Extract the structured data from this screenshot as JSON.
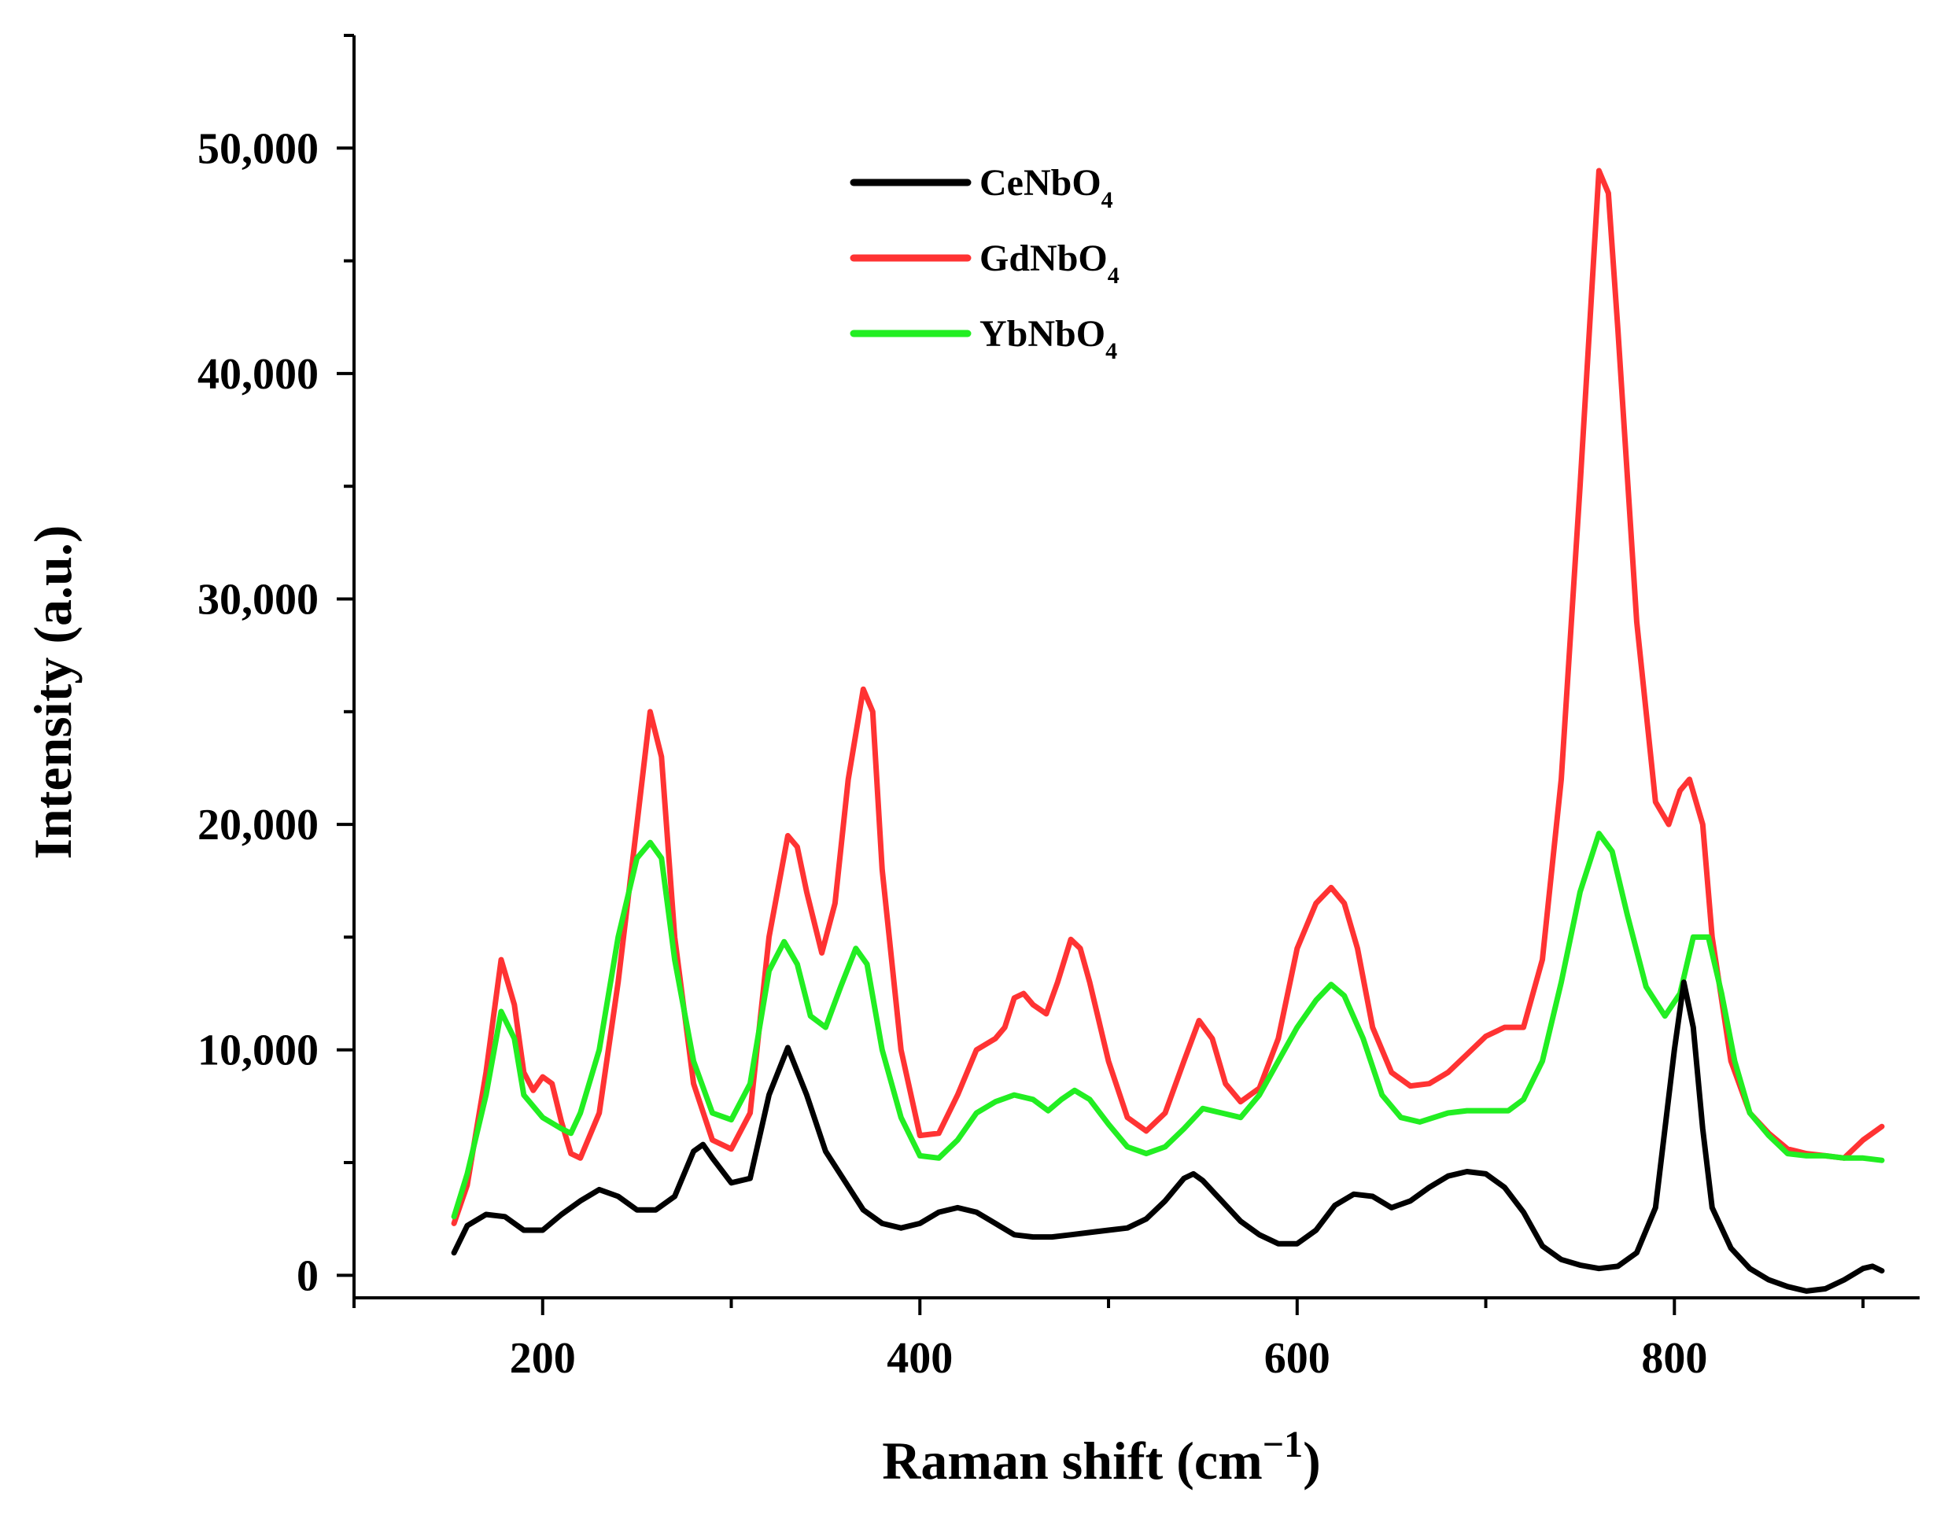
{
  "chart_data": {
    "type": "line",
    "title": "",
    "xlabel": "Raman shift  (cm",
    "xlabel_sup": "−1",
    "xlabel_close": ")",
    "ylabel": "Intensity  (a.u.)",
    "xlim": [
      100,
      930
    ],
    "ylim": [
      -1000,
      55000
    ],
    "x_ticks": [
      200,
      400,
      600,
      800
    ],
    "x_tick_labels": [
      "200",
      "400",
      "600",
      "800"
    ],
    "y_ticks": [
      0,
      10000,
      20000,
      30000,
      40000,
      50000
    ],
    "y_tick_labels": [
      "0",
      "10,000",
      "20,000",
      "30,000",
      "40,000",
      "50,000"
    ],
    "grid": false,
    "legend_position": "top-center",
    "series": [
      {
        "name": "CeNbO4",
        "label_main": "CeNbO",
        "label_sub": "4",
        "color": "#000000",
        "points": [
          [
            153,
            1000
          ],
          [
            160,
            2200
          ],
          [
            170,
            2700
          ],
          [
            180,
            2600
          ],
          [
            190,
            2000
          ],
          [
            200,
            2000
          ],
          [
            210,
            2700
          ],
          [
            220,
            3300
          ],
          [
            230,
            3800
          ],
          [
            240,
            3500
          ],
          [
            250,
            2900
          ],
          [
            260,
            2900
          ],
          [
            270,
            3500
          ],
          [
            280,
            5500
          ],
          [
            285,
            5800
          ],
          [
            290,
            5200
          ],
          [
            300,
            4100
          ],
          [
            310,
            4300
          ],
          [
            320,
            8000
          ],
          [
            330,
            10100
          ],
          [
            340,
            8000
          ],
          [
            350,
            5500
          ],
          [
            360,
            4200
          ],
          [
            370,
            2900
          ],
          [
            380,
            2300
          ],
          [
            390,
            2100
          ],
          [
            400,
            2300
          ],
          [
            410,
            2800
          ],
          [
            420,
            3000
          ],
          [
            430,
            2800
          ],
          [
            440,
            2300
          ],
          [
            450,
            1800
          ],
          [
            460,
            1700
          ],
          [
            470,
            1700
          ],
          [
            480,
            1800
          ],
          [
            490,
            1900
          ],
          [
            500,
            2000
          ],
          [
            510,
            2100
          ],
          [
            520,
            2500
          ],
          [
            530,
            3300
          ],
          [
            540,
            4300
          ],
          [
            545,
            4500
          ],
          [
            550,
            4200
          ],
          [
            560,
            3300
          ],
          [
            570,
            2400
          ],
          [
            580,
            1800
          ],
          [
            590,
            1400
          ],
          [
            600,
            1400
          ],
          [
            610,
            2000
          ],
          [
            620,
            3100
          ],
          [
            630,
            3600
          ],
          [
            640,
            3500
          ],
          [
            650,
            3000
          ],
          [
            660,
            3300
          ],
          [
            670,
            3900
          ],
          [
            680,
            4400
          ],
          [
            690,
            4600
          ],
          [
            700,
            4500
          ],
          [
            710,
            3900
          ],
          [
            720,
            2800
          ],
          [
            730,
            1300
          ],
          [
            740,
            700
          ],
          [
            750,
            450
          ],
          [
            760,
            300
          ],
          [
            770,
            400
          ],
          [
            780,
            1000
          ],
          [
            790,
            3000
          ],
          [
            800,
            10000
          ],
          [
            805,
            13000
          ],
          [
            810,
            11000
          ],
          [
            815,
            6500
          ],
          [
            820,
            3000
          ],
          [
            830,
            1200
          ],
          [
            840,
            300
          ],
          [
            850,
            -200
          ],
          [
            860,
            -500
          ],
          [
            870,
            -700
          ],
          [
            880,
            -600
          ],
          [
            890,
            -200
          ],
          [
            900,
            300
          ],
          [
            905,
            400
          ],
          [
            910,
            200
          ]
        ]
      },
      {
        "name": "GdNbO4",
        "label_main": "GdNbO",
        "label_sub": "4",
        "color": "#ff3333",
        "points": [
          [
            153,
            2300
          ],
          [
            160,
            4000
          ],
          [
            170,
            9000
          ],
          [
            178,
            14000
          ],
          [
            185,
            12000
          ],
          [
            190,
            9000
          ],
          [
            195,
            8200
          ],
          [
            200,
            8800
          ],
          [
            205,
            8500
          ],
          [
            210,
            6800
          ],
          [
            215,
            5400
          ],
          [
            220,
            5200
          ],
          [
            230,
            7200
          ],
          [
            240,
            13000
          ],
          [
            250,
            20000
          ],
          [
            257,
            25000
          ],
          [
            263,
            23000
          ],
          [
            270,
            15000
          ],
          [
            280,
            8500
          ],
          [
            290,
            6000
          ],
          [
            300,
            5600
          ],
          [
            310,
            7200
          ],
          [
            320,
            15000
          ],
          [
            330,
            19500
          ],
          [
            335,
            19000
          ],
          [
            340,
            17000
          ],
          [
            348,
            14300
          ],
          [
            355,
            16500
          ],
          [
            362,
            22000
          ],
          [
            370,
            26000
          ],
          [
            375,
            25000
          ],
          [
            380,
            18000
          ],
          [
            390,
            10000
          ],
          [
            400,
            6200
          ],
          [
            410,
            6300
          ],
          [
            420,
            8000
          ],
          [
            430,
            10000
          ],
          [
            440,
            10500
          ],
          [
            445,
            11000
          ],
          [
            450,
            12300
          ],
          [
            455,
            12500
          ],
          [
            460,
            12000
          ],
          [
            467,
            11600
          ],
          [
            473,
            13000
          ],
          [
            480,
            14900
          ],
          [
            485,
            14500
          ],
          [
            490,
            13000
          ],
          [
            500,
            9500
          ],
          [
            510,
            7000
          ],
          [
            520,
            6400
          ],
          [
            530,
            7200
          ],
          [
            540,
            9500
          ],
          [
            548,
            11300
          ],
          [
            555,
            10500
          ],
          [
            562,
            8500
          ],
          [
            570,
            7700
          ],
          [
            580,
            8300
          ],
          [
            590,
            10500
          ],
          [
            600,
            14500
          ],
          [
            610,
            16500
          ],
          [
            618,
            17200
          ],
          [
            625,
            16500
          ],
          [
            632,
            14500
          ],
          [
            640,
            11000
          ],
          [
            650,
            9000
          ],
          [
            660,
            8400
          ],
          [
            670,
            8500
          ],
          [
            680,
            9000
          ],
          [
            690,
            9800
          ],
          [
            700,
            10600
          ],
          [
            710,
            11000
          ],
          [
            720,
            11000
          ],
          [
            730,
            14000
          ],
          [
            740,
            22000
          ],
          [
            750,
            35000
          ],
          [
            760,
            49000
          ],
          [
            765,
            48000
          ],
          [
            770,
            42000
          ],
          [
            780,
            29000
          ],
          [
            790,
            21000
          ],
          [
            797,
            20000
          ],
          [
            803,
            21500
          ],
          [
            808,
            22000
          ],
          [
            815,
            20000
          ],
          [
            820,
            15000
          ],
          [
            830,
            9500
          ],
          [
            840,
            7200
          ],
          [
            850,
            6300
          ],
          [
            860,
            5600
          ],
          [
            870,
            5400
          ],
          [
            880,
            5300
          ],
          [
            890,
            5200
          ],
          [
            900,
            6000
          ],
          [
            910,
            6600
          ]
        ]
      },
      {
        "name": "YbNbO4",
        "label_main": "YbNbO",
        "label_sub": "4",
        "color": "#22ee22",
        "points": [
          [
            153,
            2600
          ],
          [
            160,
            4500
          ],
          [
            170,
            8000
          ],
          [
            178,
            11700
          ],
          [
            185,
            10500
          ],
          [
            190,
            8000
          ],
          [
            200,
            7000
          ],
          [
            210,
            6500
          ],
          [
            215,
            6300
          ],
          [
            220,
            7200
          ],
          [
            230,
            10000
          ],
          [
            240,
            15000
          ],
          [
            250,
            18500
          ],
          [
            257,
            19200
          ],
          [
            263,
            18500
          ],
          [
            270,
            14000
          ],
          [
            280,
            9500
          ],
          [
            290,
            7200
          ],
          [
            300,
            6900
          ],
          [
            310,
            8500
          ],
          [
            320,
            13500
          ],
          [
            328,
            14800
          ],
          [
            335,
            13800
          ],
          [
            342,
            11500
          ],
          [
            350,
            11000
          ],
          [
            358,
            12800
          ],
          [
            366,
            14500
          ],
          [
            372,
            13800
          ],
          [
            380,
            10000
          ],
          [
            390,
            7000
          ],
          [
            400,
            5300
          ],
          [
            410,
            5200
          ],
          [
            420,
            6000
          ],
          [
            430,
            7200
          ],
          [
            440,
            7700
          ],
          [
            450,
            8000
          ],
          [
            460,
            7800
          ],
          [
            468,
            7300
          ],
          [
            475,
            7800
          ],
          [
            482,
            8200
          ],
          [
            490,
            7800
          ],
          [
            500,
            6700
          ],
          [
            510,
            5700
          ],
          [
            520,
            5400
          ],
          [
            530,
            5700
          ],
          [
            540,
            6500
          ],
          [
            550,
            7400
          ],
          [
            560,
            7200
          ],
          [
            570,
            7000
          ],
          [
            580,
            8000
          ],
          [
            590,
            9500
          ],
          [
            600,
            11000
          ],
          [
            610,
            12200
          ],
          [
            618,
            12900
          ],
          [
            625,
            12400
          ],
          [
            635,
            10500
          ],
          [
            645,
            8000
          ],
          [
            655,
            7000
          ],
          [
            665,
            6800
          ],
          [
            680,
            7200
          ],
          [
            690,
            7300
          ],
          [
            700,
            7300
          ],
          [
            712,
            7300
          ],
          [
            720,
            7800
          ],
          [
            730,
            9500
          ],
          [
            740,
            13000
          ],
          [
            750,
            17000
          ],
          [
            760,
            19600
          ],
          [
            767,
            18800
          ],
          [
            775,
            16000
          ],
          [
            785,
            12800
          ],
          [
            795,
            11500
          ],
          [
            803,
            12500
          ],
          [
            810,
            15000
          ],
          [
            818,
            15000
          ],
          [
            825,
            12500
          ],
          [
            832,
            9500
          ],
          [
            840,
            7200
          ],
          [
            850,
            6200
          ],
          [
            860,
            5400
          ],
          [
            870,
            5300
          ],
          [
            880,
            5300
          ],
          [
            890,
            5200
          ],
          [
            900,
            5200
          ],
          [
            910,
            5100
          ]
        ]
      }
    ]
  }
}
